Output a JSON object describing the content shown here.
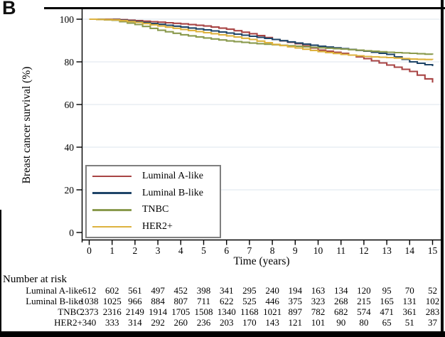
{
  "chart_data": {
    "type": "line",
    "subtype": "kaplan-meier-step",
    "panel_label": "B",
    "ylabel": "Breast cancer survival (%)",
    "xlabel": "Time (years)",
    "ylim": [
      0,
      100
    ],
    "xlim": [
      0,
      15
    ],
    "yticks": [
      0,
      20,
      40,
      60,
      80,
      100
    ],
    "xticks": [
      0,
      1,
      2,
      3,
      4,
      5,
      6,
      7,
      8,
      9,
      10,
      11,
      12,
      13,
      14,
      15
    ],
    "grid_yvalues": [
      20,
      40,
      60,
      80,
      100
    ],
    "legend_position": "bottom-left-inside",
    "series": [
      {
        "name": "Luminal A-like",
        "color": "#a84444",
        "values": [
          100,
          100,
          99.3,
          98.6,
          97.8,
          96.8,
          95.3,
          93.2,
          90.5,
          88.5,
          85.5,
          84,
          81.5,
          78.5,
          75.5,
          70.3
        ]
      },
      {
        "name": "Luminal B-like",
        "color": "#1f4568",
        "values": [
          100,
          99.8,
          98.8,
          97.6,
          96.3,
          95,
          93.5,
          92,
          90.5,
          88.8,
          87.3,
          86.2,
          85,
          83.5,
          80,
          78
        ]
      },
      {
        "name": "TNBC",
        "color": "#8a9a4e",
        "values": [
          100,
          99.5,
          97.5,
          94.8,
          92.7,
          91.2,
          89.8,
          88.8,
          88,
          87.3,
          86.6,
          86,
          85.2,
          84.5,
          84,
          83.4
        ]
      },
      {
        "name": "HER2+",
        "color": "#ddb23f",
        "values": [
          100,
          99.7,
          98.5,
          96.8,
          95.2,
          93.7,
          92.2,
          90.5,
          88.2,
          86.5,
          84.8,
          83.5,
          82.5,
          82,
          81.3,
          81
        ]
      }
    ],
    "risk_table": {
      "title": "Number at risk",
      "rows": [
        {
          "label": "Luminal A-like",
          "counts": [
            612,
            602,
            561,
            497,
            452,
            398,
            341,
            295,
            240,
            194,
            163,
            134,
            120,
            95,
            70,
            52
          ]
        },
        {
          "label": "Luminal B-like",
          "counts": [
            1038,
            1025,
            966,
            884,
            807,
            711,
            622,
            525,
            446,
            375,
            323,
            268,
            215,
            165,
            131,
            102
          ]
        },
        {
          "label": "TNBC",
          "counts": [
            2373,
            2316,
            2149,
            1914,
            1705,
            1508,
            1340,
            1168,
            1021,
            897,
            782,
            682,
            574,
            471,
            361,
            283
          ]
        },
        {
          "label": "HER2+",
          "counts": [
            340,
            333,
            314,
            292,
            260,
            236,
            203,
            170,
            143,
            121,
            101,
            90,
            80,
            65,
            51,
            37
          ]
        }
      ]
    },
    "colors": {
      "axis": "#000000",
      "gridline": "#e3eaf1",
      "legend_border": "#7f7f7f",
      "frame": "#000000"
    }
  }
}
